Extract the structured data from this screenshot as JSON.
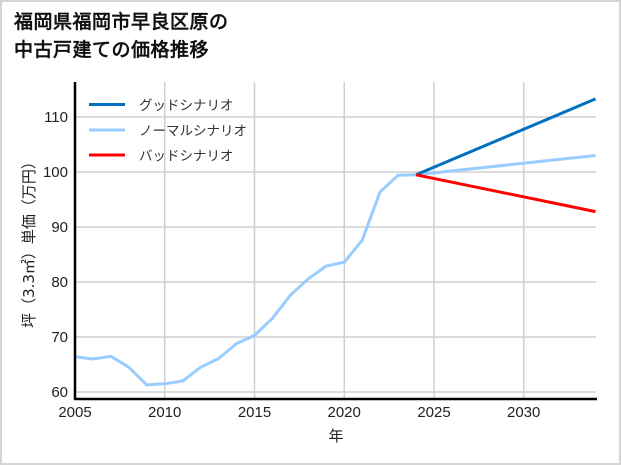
{
  "title_lines": [
    "福岡県福岡市早良区原の",
    "中古戸建ての価格推移"
  ],
  "chart_data": {
    "type": "line",
    "title": "福岡県福岡市早良区原の中古戸建ての価格推移",
    "xlabel": "年",
    "ylabel": "坪（3.3㎡）単価（万円）",
    "xlim": [
      2005,
      2034
    ],
    "ylim": [
      59,
      116
    ],
    "xticks": [
      2005,
      2010,
      2015,
      2020,
      2025,
      2030
    ],
    "yticks": [
      60,
      70,
      80,
      90,
      100,
      110
    ],
    "grid": true,
    "legend_position": "upper left",
    "series": [
      {
        "name": "グッドシナリオ",
        "color": "#0070c0",
        "x": [
          2024,
          2034
        ],
        "values": [
          99.5,
          113.3
        ]
      },
      {
        "name": "ノーマルシナリオ",
        "color": "#99ccff",
        "x": [
          2005,
          2006,
          2007,
          2008,
          2009,
          2010,
          2011,
          2012,
          2013,
          2014,
          2015,
          2016,
          2017,
          2018,
          2019,
          2020,
          2021,
          2022,
          2023,
          2024,
          2034
        ],
        "values": [
          66.4,
          66.0,
          66.5,
          64.5,
          61.3,
          61.5,
          62.0,
          64.5,
          66.1,
          68.8,
          70.3,
          73.4,
          77.6,
          80.6,
          82.9,
          83.6,
          87.6,
          96.4,
          99.4,
          99.5,
          103.0
        ]
      },
      {
        "name": "バッドシナリオ",
        "color": "#ff0000",
        "x": [
          2024,
          2034
        ],
        "values": [
          99.5,
          92.8
        ]
      }
    ]
  },
  "axes": {
    "x_label": "年",
    "y_label": "坪（3.3㎡）単価（万円）",
    "x_tick_labels": [
      "2005",
      "2010",
      "2015",
      "2020",
      "2025",
      "2030"
    ],
    "y_tick_labels": [
      "60",
      "70",
      "80",
      "90",
      "100",
      "110"
    ]
  },
  "legend": [
    {
      "label": "グッドシナリオ",
      "color": "#0070c0"
    },
    {
      "label": "ノーマルシナリオ",
      "color": "#99ccff"
    },
    {
      "label": "バッドシナリオ",
      "color": "#ff0000"
    }
  ],
  "style": {
    "grid_color": "#d0d0d0",
    "axis_color": "#000000",
    "frame_color": "#d4d4d4"
  }
}
